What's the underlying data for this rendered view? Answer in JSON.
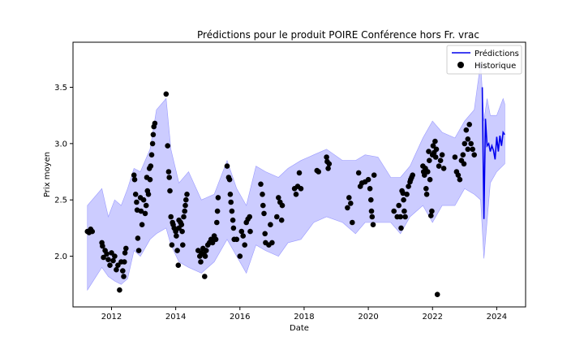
{
  "chart_data": {
    "type": "line",
    "title": "Prédictions pour le produit POIRE Conférence hors Fr. vrac",
    "xlabel": "Date",
    "ylabel": "Prix moyen",
    "xlim": [
      2010.8,
      2024.9
    ],
    "ylim": [
      1.55,
      3.9
    ],
    "x_ticks": [
      2012,
      2014,
      2016,
      2018,
      2020,
      2022,
      2024
    ],
    "y_ticks": [
      2.0,
      2.5,
      3.0,
      3.5
    ],
    "x_tick_labels": [
      "2012",
      "2014",
      "2016",
      "2018",
      "2020",
      "2022",
      "2024"
    ],
    "y_tick_labels": [
      "2.0",
      "2.5",
      "3.0",
      "3.5"
    ],
    "grid": false,
    "legend": {
      "position": "top-right",
      "entries": [
        "Prédictions",
        "Historique"
      ]
    },
    "colors": {
      "prediction": "#0000ee",
      "band": "#aaaaff",
      "history": "#000000"
    },
    "series": [
      {
        "name": "Prédictions",
        "kind": "line",
        "x": [
          2023.55,
          2023.6,
          2023.65,
          2023.7,
          2023.75,
          2023.8,
          2023.85,
          2023.9,
          2023.95,
          2024.0,
          2024.05,
          2024.1,
          2024.15,
          2024.2,
          2024.25
        ],
        "values": [
          3.5,
          2.33,
          3.22,
          2.98,
          3.0,
          2.93,
          2.98,
          2.94,
          2.86,
          3.06,
          2.93,
          3.07,
          2.98,
          3.1,
          3.08
        ]
      },
      {
        "name": "Historique",
        "kind": "scatter",
        "points": [
          [
            2011.25,
            2.22
          ],
          [
            2011.3,
            2.21
          ],
          [
            2011.35,
            2.24
          ],
          [
            2011.4,
            2.22
          ],
          [
            2011.7,
            2.12
          ],
          [
            2011.72,
            2.09
          ],
          [
            2011.75,
            1.99
          ],
          [
            2011.8,
            2.05
          ],
          [
            2011.85,
            2.02
          ],
          [
            2011.9,
            1.97
          ],
          [
            2011.95,
            1.92
          ],
          [
            2012.0,
            2.03
          ],
          [
            2012.05,
            1.96
          ],
          [
            2012.1,
            2.0
          ],
          [
            2012.15,
            1.88
          ],
          [
            2012.2,
            1.92
          ],
          [
            2012.25,
            1.7
          ],
          [
            2012.3,
            1.95
          ],
          [
            2012.35,
            1.87
          ],
          [
            2012.38,
            1.82
          ],
          [
            2012.42,
            2.03
          ],
          [
            2012.45,
            2.07
          ],
          [
            2012.4,
            1.95
          ],
          [
            2012.7,
            2.72
          ],
          [
            2012.72,
            2.68
          ],
          [
            2012.75,
            2.55
          ],
          [
            2012.78,
            2.48
          ],
          [
            2012.8,
            2.41
          ],
          [
            2012.82,
            2.16
          ],
          [
            2012.85,
            2.05
          ],
          [
            2012.9,
            2.52
          ],
          [
            2012.92,
            2.4
          ],
          [
            2012.95,
            2.28
          ],
          [
            2013.0,
            2.5
          ],
          [
            2013.05,
            2.38
          ],
          [
            2013.08,
            2.45
          ],
          [
            2013.1,
            2.7
          ],
          [
            2013.12,
            2.58
          ],
          [
            2013.15,
            2.55
          ],
          [
            2013.18,
            2.78
          ],
          [
            2013.2,
            2.68
          ],
          [
            2013.22,
            2.8
          ],
          [
            2013.25,
            2.9
          ],
          [
            2013.28,
            3.0
          ],
          [
            2013.3,
            3.08
          ],
          [
            2013.32,
            3.15
          ],
          [
            2013.35,
            3.18
          ],
          [
            2013.7,
            3.44
          ],
          [
            2013.75,
            2.98
          ],
          [
            2013.78,
            2.75
          ],
          [
            2013.8,
            2.7
          ],
          [
            2013.82,
            2.58
          ],
          [
            2013.85,
            2.35
          ],
          [
            2013.88,
            2.1
          ],
          [
            2013.9,
            2.3
          ],
          [
            2013.92,
            2.28
          ],
          [
            2013.95,
            2.25
          ],
          [
            2014.0,
            2.22
          ],
          [
            2014.02,
            2.18
          ],
          [
            2014.05,
            2.05
          ],
          [
            2014.08,
            1.92
          ],
          [
            2014.1,
            2.25
          ],
          [
            2014.15,
            2.3
          ],
          [
            2014.2,
            2.22
          ],
          [
            2014.22,
            2.1
          ],
          [
            2014.25,
            2.35
          ],
          [
            2014.28,
            2.4
          ],
          [
            2014.3,
            2.45
          ],
          [
            2014.32,
            2.5
          ],
          [
            2014.35,
            2.55
          ],
          [
            2014.1,
            2.32
          ],
          [
            2014.18,
            2.28
          ],
          [
            2014.7,
            2.05
          ],
          [
            2014.75,
            2.0
          ],
          [
            2014.78,
            1.95
          ],
          [
            2014.8,
            2.03
          ],
          [
            2014.85,
            2.07
          ],
          [
            2014.88,
            2.02
          ],
          [
            2014.9,
            1.82
          ],
          [
            2014.92,
            2.0
          ],
          [
            2014.95,
            2.05
          ],
          [
            2015.0,
            2.1
          ],
          [
            2015.05,
            2.12
          ],
          [
            2015.1,
            2.15
          ],
          [
            2015.15,
            2.12
          ],
          [
            2015.2,
            2.18
          ],
          [
            2015.25,
            2.15
          ],
          [
            2015.28,
            2.3
          ],
          [
            2015.3,
            2.4
          ],
          [
            2015.32,
            2.52
          ],
          [
            2015.6,
            2.8
          ],
          [
            2015.65,
            2.7
          ],
          [
            2015.68,
            2.68
          ],
          [
            2015.7,
            2.55
          ],
          [
            2015.72,
            2.48
          ],
          [
            2015.75,
            2.4
          ],
          [
            2015.78,
            2.32
          ],
          [
            2015.8,
            2.25
          ],
          [
            2015.82,
            2.15
          ],
          [
            2015.9,
            2.15
          ],
          [
            2016.0,
            2.0
          ],
          [
            2016.05,
            2.22
          ],
          [
            2016.1,
            2.18
          ],
          [
            2016.15,
            2.1
          ],
          [
            2016.2,
            2.3
          ],
          [
            2016.25,
            2.33
          ],
          [
            2016.3,
            2.35
          ],
          [
            2016.32,
            2.22
          ],
          [
            2016.65,
            2.64
          ],
          [
            2016.7,
            2.55
          ],
          [
            2016.72,
            2.45
          ],
          [
            2016.75,
            2.38
          ],
          [
            2016.78,
            2.2
          ],
          [
            2016.8,
            2.12
          ],
          [
            2016.9,
            2.1
          ],
          [
            2016.95,
            2.28
          ],
          [
            2017.0,
            2.12
          ],
          [
            2017.15,
            2.35
          ],
          [
            2017.2,
            2.52
          ],
          [
            2017.25,
            2.48
          ],
          [
            2017.3,
            2.32
          ],
          [
            2017.32,
            2.45
          ],
          [
            2017.7,
            2.6
          ],
          [
            2017.75,
            2.55
          ],
          [
            2017.8,
            2.62
          ],
          [
            2017.85,
            2.74
          ],
          [
            2017.9,
            2.6
          ],
          [
            2018.4,
            2.76
          ],
          [
            2018.45,
            2.75
          ],
          [
            2018.7,
            2.88
          ],
          [
            2018.72,
            2.84
          ],
          [
            2018.75,
            2.78
          ],
          [
            2018.78,
            2.82
          ],
          [
            2019.35,
            2.43
          ],
          [
            2019.4,
            2.52
          ],
          [
            2019.45,
            2.47
          ],
          [
            2019.5,
            2.3
          ],
          [
            2019.7,
            2.74
          ],
          [
            2019.75,
            2.62
          ],
          [
            2019.8,
            2.65
          ],
          [
            2019.9,
            2.66
          ],
          [
            2020.0,
            2.68
          ],
          [
            2020.05,
            2.6
          ],
          [
            2020.08,
            2.5
          ],
          [
            2020.1,
            2.4
          ],
          [
            2020.12,
            2.35
          ],
          [
            2020.15,
            2.28
          ],
          [
            2020.18,
            2.72
          ],
          [
            2020.8,
            2.4
          ],
          [
            2020.9,
            2.35
          ],
          [
            2020.95,
            2.45
          ],
          [
            2021.0,
            2.35
          ],
          [
            2021.02,
            2.25
          ],
          [
            2021.05,
            2.58
          ],
          [
            2021.08,
            2.56
          ],
          [
            2021.1,
            2.5
          ],
          [
            2021.12,
            2.4
          ],
          [
            2021.15,
            2.35
          ],
          [
            2021.2,
            2.55
          ],
          [
            2021.25,
            2.62
          ],
          [
            2021.3,
            2.66
          ],
          [
            2021.32,
            2.68
          ],
          [
            2021.35,
            2.7
          ],
          [
            2021.38,
            2.72
          ],
          [
            2021.7,
            2.8
          ],
          [
            2021.72,
            2.75
          ],
          [
            2021.75,
            2.72
          ],
          [
            2021.78,
            2.78
          ],
          [
            2021.8,
            2.6
          ],
          [
            2021.82,
            2.55
          ],
          [
            2021.85,
            2.75
          ],
          [
            2021.88,
            2.93
          ],
          [
            2021.9,
            2.85
          ],
          [
            2021.92,
            2.68
          ],
          [
            2021.95,
            2.36
          ],
          [
            2021.98,
            2.4
          ],
          [
            2022.0,
            2.9
          ],
          [
            2022.02,
            2.98
          ],
          [
            2022.05,
            2.92
          ],
          [
            2022.08,
            3.02
          ],
          [
            2022.1,
            2.88
          ],
          [
            2022.12,
            2.95
          ],
          [
            2022.15,
            1.66
          ],
          [
            2022.2,
            2.8
          ],
          [
            2022.25,
            2.85
          ],
          [
            2022.3,
            2.9
          ],
          [
            2022.35,
            2.78
          ],
          [
            2022.7,
            2.88
          ],
          [
            2022.75,
            2.75
          ],
          [
            2022.8,
            2.72
          ],
          [
            2022.85,
            2.68
          ],
          [
            2022.9,
            2.85
          ],
          [
            2022.95,
            2.9
          ],
          [
            2023.0,
            3.0
          ],
          [
            2023.05,
            3.12
          ],
          [
            2023.1,
            3.04
          ],
          [
            2023.15,
            3.17
          ],
          [
            2023.2,
            3.0
          ],
          [
            2023.25,
            2.95
          ],
          [
            2023.3,
            2.9
          ],
          [
            2023.1,
            2.95
          ],
          [
            2022.98,
            2.82
          ]
        ]
      }
    ],
    "band": {
      "upper": [
        [
          2011.25,
          2.45
        ],
        [
          2011.7,
          2.6
        ],
        [
          2011.9,
          2.35
        ],
        [
          2012.1,
          2.5
        ],
        [
          2012.3,
          2.45
        ],
        [
          2012.5,
          2.6
        ],
        [
          2012.7,
          2.78
        ],
        [
          2012.9,
          2.75
        ],
        [
          2013.2,
          2.95
        ],
        [
          2013.4,
          3.3
        ],
        [
          2013.7,
          3.4
        ],
        [
          2013.85,
          2.95
        ],
        [
          2014.1,
          2.65
        ],
        [
          2014.4,
          2.75
        ],
        [
          2014.8,
          2.5
        ],
        [
          2015.2,
          2.55
        ],
        [
          2015.6,
          2.85
        ],
        [
          2015.9,
          2.6
        ],
        [
          2016.2,
          2.45
        ],
        [
          2016.5,
          2.8
        ],
        [
          2016.8,
          2.75
        ],
        [
          2017.2,
          2.7
        ],
        [
          2017.5,
          2.78
        ],
        [
          2017.9,
          2.85
        ],
        [
          2018.3,
          2.9
        ],
        [
          2018.7,
          2.95
        ],
        [
          2019.2,
          2.85
        ],
        [
          2019.6,
          2.85
        ],
        [
          2019.9,
          2.9
        ],
        [
          2020.3,
          2.88
        ],
        [
          2020.7,
          2.7
        ],
        [
          2021.0,
          2.7
        ],
        [
          2021.3,
          2.8
        ],
        [
          2021.7,
          3.05
        ],
        [
          2022.0,
          3.2
        ],
        [
          2022.3,
          3.1
        ],
        [
          2022.7,
          3.05
        ],
        [
          2023.0,
          3.2
        ],
        [
          2023.3,
          3.3
        ],
        [
          2023.5,
          3.72
        ],
        [
          2023.6,
          3.2
        ],
        [
          2023.7,
          3.4
        ],
        [
          2023.8,
          3.25
        ],
        [
          2024.0,
          3.25
        ],
        [
          2024.2,
          3.4
        ],
        [
          2024.25,
          3.35
        ]
      ],
      "lower": [
        [
          2024.25,
          2.82
        ],
        [
          2024.0,
          2.75
        ],
        [
          2023.8,
          2.65
        ],
        [
          2023.6,
          1.98
        ],
        [
          2023.5,
          2.5
        ],
        [
          2023.3,
          2.55
        ],
        [
          2023.0,
          2.6
        ],
        [
          2022.7,
          2.45
        ],
        [
          2022.3,
          2.45
        ],
        [
          2022.0,
          2.3
        ],
        [
          2021.7,
          2.45
        ],
        [
          2021.3,
          2.35
        ],
        [
          2021.0,
          2.2
        ],
        [
          2020.7,
          2.3
        ],
        [
          2020.3,
          2.3
        ],
        [
          2019.9,
          2.3
        ],
        [
          2019.6,
          2.2
        ],
        [
          2019.2,
          2.3
        ],
        [
          2018.7,
          2.35
        ],
        [
          2018.3,
          2.3
        ],
        [
          2017.9,
          2.15
        ],
        [
          2017.5,
          2.12
        ],
        [
          2017.2,
          2.0
        ],
        [
          2016.8,
          2.05
        ],
        [
          2016.5,
          2.1
        ],
        [
          2016.2,
          1.85
        ],
        [
          2015.9,
          2.0
        ],
        [
          2015.6,
          2.15
        ],
        [
          2015.2,
          1.95
        ],
        [
          2014.8,
          1.85
        ],
        [
          2014.4,
          1.9
        ],
        [
          2014.1,
          1.95
        ],
        [
          2013.85,
          2.1
        ],
        [
          2013.7,
          2.25
        ],
        [
          2013.4,
          2.2
        ],
        [
          2013.2,
          2.15
        ],
        [
          2012.9,
          2.0
        ],
        [
          2012.7,
          2.05
        ],
        [
          2012.5,
          1.8
        ],
        [
          2012.3,
          1.75
        ],
        [
          2012.1,
          1.78
        ],
        [
          2011.9,
          1.82
        ],
        [
          2011.7,
          1.9
        ],
        [
          2011.25,
          1.7
        ]
      ]
    }
  }
}
